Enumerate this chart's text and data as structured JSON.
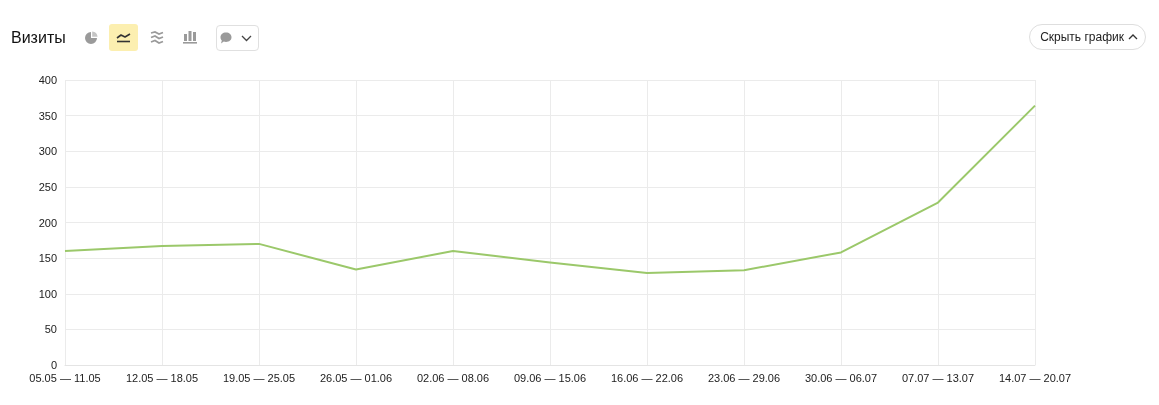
{
  "chart_data": {
    "type": "line",
    "title": "Визиты",
    "categories": [
      "05.05 — 11.05",
      "12.05 — 18.05",
      "19.05 — 25.05",
      "26.05 — 01.06",
      "02.06 — 08.06",
      "09.06 — 15.06",
      "16.06 — 22.06",
      "23.06 — 29.06",
      "30.06 — 06.07",
      "07.07 — 13.07",
      "14.07 — 20.07"
    ],
    "values": [
      160,
      167,
      170,
      134,
      160,
      144,
      129,
      133,
      158,
      228,
      364
    ],
    "color": "#9bc86a",
    "ylim": [
      0,
      400
    ],
    "yticks": [
      0,
      50,
      100,
      150,
      200,
      250,
      300,
      350,
      400
    ],
    "grid": true,
    "marker": "none",
    "annotations": [
      "Скрыть график"
    ]
  }
}
